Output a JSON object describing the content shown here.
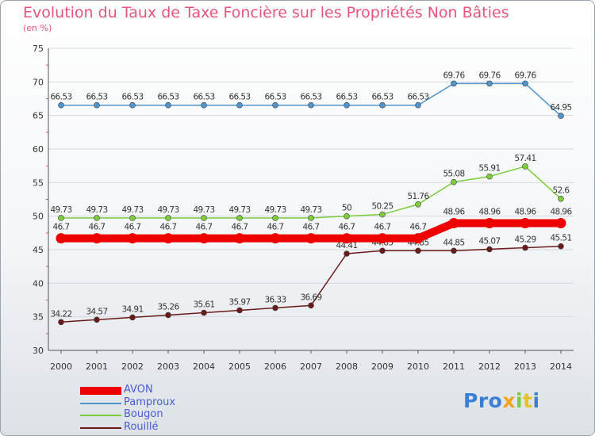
{
  "title": "Evolution du Taux de Taxe Foncière sur les Propriétés Non Bâties",
  "subtitle": "(en %)",
  "chart_data": {
    "type": "line",
    "title": "Evolution du Taux de Taxe Foncière sur les Propriétés Non Bâties",
    "ylabel": "(en %)",
    "xlabel": "",
    "ylim": [
      30,
      75
    ],
    "yticks": [
      30,
      35,
      40,
      45,
      50,
      55,
      60,
      65,
      70,
      75
    ],
    "categories": [
      "2000",
      "2001",
      "2002",
      "2003",
      "2004",
      "2005",
      "2006",
      "2007",
      "2008",
      "2009",
      "2010",
      "2011",
      "2012",
      "2013",
      "2014"
    ],
    "series": [
      {
        "name": "AVON",
        "color": "#ee0000",
        "emphasis": true,
        "values": [
          46.7,
          46.7,
          46.7,
          46.7,
          46.7,
          46.7,
          46.7,
          46.7,
          46.7,
          46.7,
          46.7,
          48.96,
          48.96,
          48.96,
          48.96
        ],
        "labels": [
          "46.7",
          "46.7",
          "46.7",
          "46.7",
          "46.7",
          "46.7",
          "46.7",
          "46.7",
          "46.7",
          "46.7",
          "46.7",
          "48.96",
          "48.96",
          "48.96",
          "48.96"
        ]
      },
      {
        "name": "Pamproux",
        "color": "#4f94cd",
        "values": [
          66.53,
          66.53,
          66.53,
          66.53,
          66.53,
          66.53,
          66.53,
          66.53,
          66.53,
          66.53,
          66.53,
          69.76,
          69.76,
          69.76,
          64.95
        ],
        "labels": [
          "66.53",
          "66.53",
          "66.53",
          "66.53",
          "66.53",
          "66.53",
          "66.53",
          "66.53",
          "66.53",
          "66.53",
          "66.53",
          "69.76",
          "69.76",
          "69.76",
          "64.95"
        ]
      },
      {
        "name": "Bougon",
        "color": "#7ccd3c",
        "values": [
          49.73,
          49.73,
          49.73,
          49.73,
          49.73,
          49.73,
          49.73,
          49.73,
          50,
          50.25,
          51.76,
          55.08,
          55.91,
          57.41,
          52.6
        ],
        "labels": [
          "49.73",
          "49.73",
          "49.73",
          "49.73",
          "49.73",
          "49.73",
          "49.73",
          "49.73",
          "50",
          "50.25",
          "51.76",
          "55.08",
          "55.91",
          "57.41",
          "52.6"
        ]
      },
      {
        "name": "Rouillé",
        "color": "#6b1a1a",
        "values": [
          34.22,
          34.57,
          34.91,
          35.26,
          35.61,
          35.97,
          36.33,
          36.69,
          44.41,
          44.85,
          44.85,
          44.85,
          45.07,
          45.29,
          45.51
        ],
        "labels": [
          "34.22",
          "34.57",
          "34.91",
          "35.26",
          "35.61",
          "35.97",
          "36.33",
          "36.69",
          "44.41",
          "44.85",
          "44.85",
          "44.85",
          "45.07",
          "45.29",
          "45.51"
        ]
      }
    ]
  },
  "legend": [
    {
      "label": "AVON",
      "color": "#ee0000"
    },
    {
      "label": "Pamproux",
      "color": "#4f94cd"
    },
    {
      "label": "Bougon",
      "color": "#7ccd3c"
    },
    {
      "label": "Rouillé",
      "color": "#6b1a1a"
    }
  ],
  "logo": {
    "text": "Proxiti",
    "colors": [
      "#3a7fd5",
      "#3a7fd5",
      "#3a7fd5",
      "#f2a51a",
      "#7ccd3c",
      "#e8c41a",
      "#3a7fd5"
    ]
  }
}
